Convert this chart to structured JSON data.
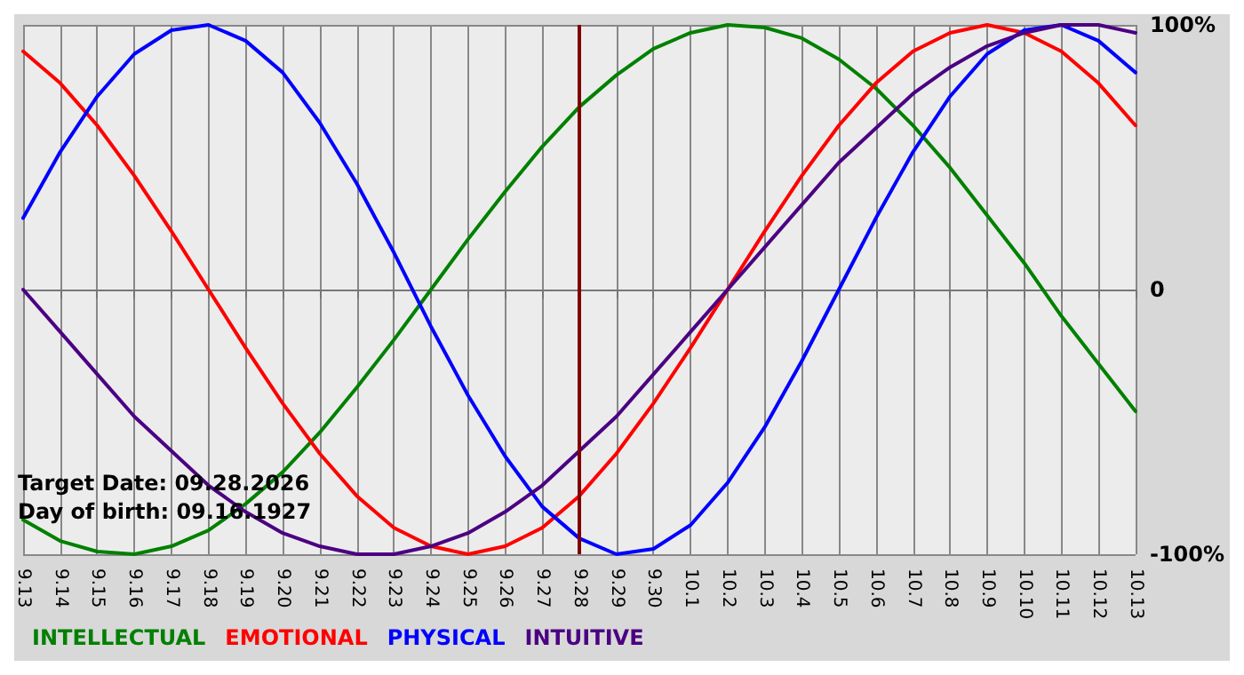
{
  "chart_data": {
    "type": "line",
    "categories": [
      "9.13",
      "9.14",
      "9.15",
      "9.16",
      "9.17",
      "9.18",
      "9.19",
      "9.20",
      "9.21",
      "9.22",
      "9.23",
      "9.24",
      "9.25",
      "9.26",
      "9.27",
      "9.28",
      "9.29",
      "9.30",
      "10.1",
      "10.2",
      "10.3",
      "10.4",
      "10.5",
      "10.6",
      "10.7",
      "10.8",
      "10.9",
      "10.10",
      "10.11",
      "10.12",
      "10.13"
    ],
    "series": [
      {
        "name": "INTELLECTUAL",
        "color": "#008000",
        "values": [
          -87,
          -95,
          -99,
          -100,
          -97,
          -91,
          -81,
          -69,
          -54,
          -37,
          -19,
          0,
          19,
          37,
          54,
          69,
          81,
          91,
          97,
          100,
          99,
          95,
          87,
          76,
          62,
          46,
          28,
          10,
          -10,
          -28,
          -46
        ]
      },
      {
        "name": "EMOTIONAL",
        "color": "#ff0000",
        "values": [
          90,
          78,
          62,
          43,
          22,
          0,
          -22,
          -43,
          -62,
          -78,
          -90,
          -97,
          -100,
          -97,
          -90,
          -78,
          -62,
          -43,
          -22,
          0,
          22,
          43,
          62,
          78,
          90,
          97,
          100,
          97,
          90,
          78,
          62
        ]
      },
      {
        "name": "PHYSICAL",
        "color": "#0000ff",
        "values": [
          27,
          52,
          73,
          89,
          98,
          100,
          94,
          82,
          63,
          40,
          14,
          -14,
          -40,
          -63,
          -82,
          -94,
          -100,
          -98,
          -89,
          -73,
          -52,
          -27,
          0,
          27,
          52,
          73,
          89,
          98,
          100,
          94,
          82
        ]
      },
      {
        "name": "INTUITIVE",
        "color": "#4b0082",
        "values": [
          0,
          -16,
          -32,
          -48,
          -61,
          -74,
          -84,
          -92,
          -97,
          -100,
          -100,
          -97,
          -92,
          -84,
          -74,
          -61,
          -48,
          -32,
          -16,
          0,
          16,
          32,
          48,
          61,
          74,
          84,
          92,
          97,
          100,
          100,
          97
        ]
      }
    ],
    "ylim": [
      -100,
      100
    ],
    "yticks": [
      {
        "value": -100,
        "label": "-100%"
      },
      0,
      {
        "value": 100,
        "label": "100%"
      }
    ],
    "ref_lines": [
      {
        "axis": "x",
        "value": "9.28",
        "color": "#800000"
      }
    ],
    "annotations": [
      "Target Date: 09.28.2026",
      "Day of birth: 09.16.1927"
    ],
    "grid": true,
    "legend": "bottom left",
    "marker": "none",
    "line_style": "solid"
  }
}
